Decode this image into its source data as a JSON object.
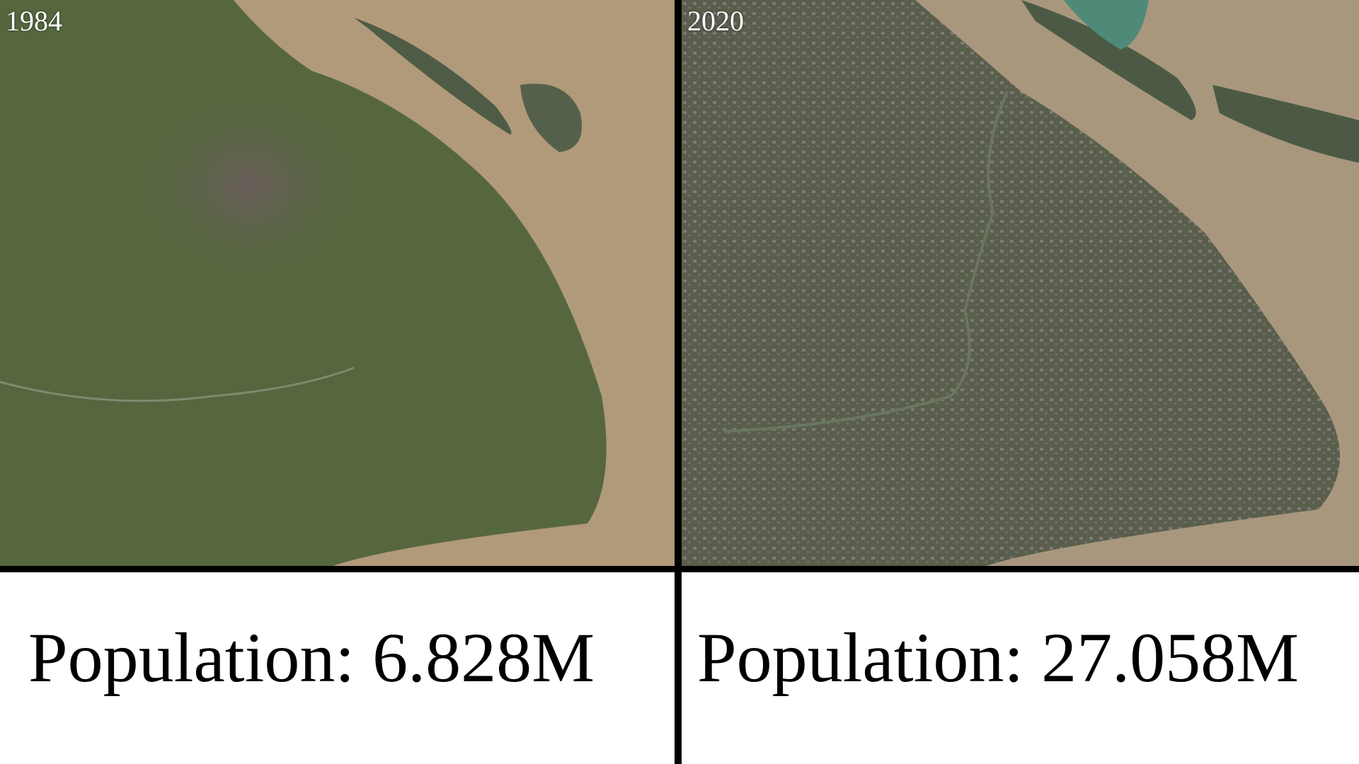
{
  "panels": [
    {
      "year": "1984",
      "caption": "Population: 6.828M"
    },
    {
      "year": "2020",
      "caption": "Population: 27.058M"
    }
  ],
  "colors": {
    "land_1984": "#56673f",
    "land_2020": "#5a5e4c",
    "water": "#b09a7a",
    "divider": "#000000"
  }
}
